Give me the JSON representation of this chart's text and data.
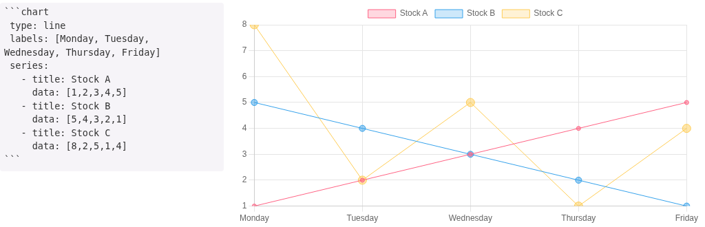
{
  "chart_data": [
    {
      "type": "other",
      "annotations": [
        "```chart",
        " type: line",
        " labels: [Monday, Tuesday,",
        "Wednesday, Thursday, Friday]",
        " series:",
        "   - title: Stock A",
        "     data: [1,2,3,4,5]",
        "   - title: Stock B",
        "     data: [5,4,3,2,1]",
        "   - title: Stock C",
        "     data: [8,2,5,1,4]",
        "```"
      ]
    },
    {
      "type": "line",
      "categories": [
        "Monday",
        "Tuesday",
        "Wednesday",
        "Thursday",
        "Friday"
      ],
      "series": [
        {
          "name": "Stock A",
          "color": "#ff6384",
          "values": [
            1,
            2,
            3,
            4,
            5
          ]
        },
        {
          "name": "Stock B",
          "color": "#36a2eb",
          "values": [
            5,
            4,
            3,
            2,
            1
          ]
        },
        {
          "name": "Stock C",
          "color": "#ffcd56",
          "values": [
            8,
            2,
            5,
            1,
            4
          ]
        }
      ],
      "ylim": [
        1,
        8
      ],
      "yticks": [
        1,
        2,
        3,
        4,
        5,
        6,
        7,
        8
      ],
      "grid": true,
      "legend": "top",
      "marker": "circle",
      "line_style": "solid"
    }
  ]
}
